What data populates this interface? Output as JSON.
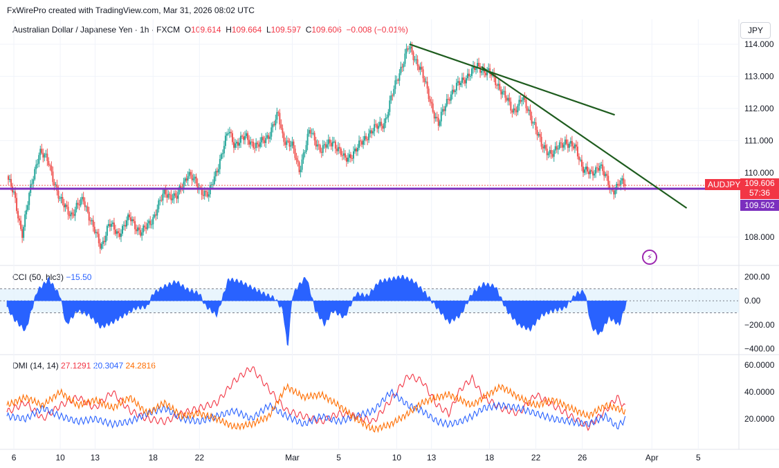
{
  "header": {
    "attribution": "FxWirePro created with TradingView.com, Mar 31, 2026 08:02 UTC"
  },
  "currency_button": "JPY",
  "legend_main": {
    "title": "Australian Dollar / Japanese Yen · 1h · FXCM",
    "o_label": "O",
    "o_value": "109.614",
    "h_label": "H",
    "h_value": "109.664",
    "l_label": "L",
    "l_value": "109.597",
    "c_label": "C",
    "c_value": "109.606",
    "change": "−0.008 (−0.01%)"
  },
  "price_tags": {
    "symbol": "AUDJPY",
    "last_price": "109.606",
    "countdown": "57:36",
    "line_price": "109.502"
  },
  "legend_cci": {
    "label": "CCI (50, hlc3)",
    "value": "−15.50"
  },
  "legend_dmi": {
    "label": "DMI (14, 14)",
    "v1": "27.1291",
    "v2": "20.3047",
    "v3": "24.2816"
  },
  "colors": {
    "up": "#26a69a",
    "down": "#ef5350",
    "trend": "#1e5c1e",
    "hline": "#7b2fbe",
    "cci": "#2962ff",
    "dmi_plus": "#2962ff",
    "dmi_minus": "#f23645",
    "adx": "#ff6d00",
    "tag_red": "#f23645",
    "tag_purple": "#7b2fbe"
  },
  "chart_data": [
    {
      "type": "candlestick",
      "title": "Australian Dollar / Japanese Yen · 1h · FXCM",
      "ylim": [
        107.2,
        114.3
      ],
      "y_ticks": [
        "114.000",
        "113.000",
        "112.000",
        "111.000",
        "110.000",
        "108.000"
      ],
      "y_tick_values": [
        114,
        113,
        112,
        111,
        110,
        108
      ],
      "x_ticks": [
        "6",
        "10",
        "13",
        "18",
        "22",
        "Mar",
        "5",
        "10",
        "13",
        "18",
        "22",
        "26",
        "Apr",
        "5"
      ],
      "x_tick_days": [
        -24,
        -20,
        -17,
        -12,
        -8,
        0,
        4,
        9,
        12,
        17,
        21,
        25,
        31,
        35
      ],
      "x_range_days": [
        -24.6,
        38.5
      ],
      "price_path": [
        [
          -24.6,
          109.9
        ],
        [
          -24,
          109.3
        ],
        [
          -23.3,
          108.1
        ],
        [
          -22.5,
          109.6
        ],
        [
          -21.8,
          110.7
        ],
        [
          -21,
          110.3
        ],
        [
          -20,
          109.1
        ],
        [
          -19,
          108.7
        ],
        [
          -18,
          109.2
        ],
        [
          -17.2,
          108.3
        ],
        [
          -16.5,
          107.7
        ],
        [
          -15.8,
          108.4
        ],
        [
          -15,
          108.1
        ],
        [
          -14,
          108.6
        ],
        [
          -13,
          108.1
        ],
        [
          -12,
          108.6
        ],
        [
          -11,
          109.4
        ],
        [
          -10,
          109.2
        ],
        [
          -9,
          110.0
        ],
        [
          -8,
          109.5
        ],
        [
          -7.2,
          109.3
        ],
        [
          -6.5,
          110.1
        ],
        [
          -5.5,
          111.3
        ],
        [
          -5,
          110.9
        ],
        [
          -4,
          111.1
        ],
        [
          -3,
          110.8
        ],
        [
          -2,
          111.2
        ],
        [
          -1.2,
          111.8
        ],
        [
          -0.8,
          111.1
        ],
        [
          0,
          110.8
        ],
        [
          0.6,
          110.1
        ],
        [
          1.5,
          111.3
        ],
        [
          2.5,
          110.7
        ],
        [
          3.5,
          111.0
        ],
        [
          4.5,
          110.4
        ],
        [
          5.5,
          110.7
        ],
        [
          6.5,
          111.2
        ],
        [
          8,
          111.6
        ],
        [
          9,
          112.9
        ],
        [
          10,
          113.9
        ],
        [
          11,
          113.3
        ],
        [
          12,
          112.1
        ],
        [
          12.6,
          111.5
        ],
        [
          13.5,
          112.4
        ],
        [
          15,
          113.0
        ],
        [
          16,
          113.3
        ],
        [
          17,
          113.1
        ],
        [
          18,
          112.6
        ],
        [
          19,
          111.9
        ],
        [
          19.8,
          112.3
        ],
        [
          20.8,
          111.6
        ],
        [
          21.5,
          110.8
        ],
        [
          22.5,
          110.6
        ],
        [
          23.5,
          111.0
        ],
        [
          24.5,
          110.7
        ],
        [
          25,
          110.2
        ],
        [
          25.8,
          109.9
        ],
        [
          26.5,
          110.3
        ],
        [
          27.5,
          109.4
        ],
        [
          28.2,
          109.7
        ],
        [
          28.8,
          109.6
        ]
      ],
      "trendlines": [
        {
          "from": [
            10.1,
            114.0
          ],
          "to": [
            27.8,
            111.8
          ]
        },
        {
          "from": [
            16.3,
            113.3
          ],
          "to": [
            34.0,
            108.9
          ]
        }
      ],
      "horizontal_line": 109.502,
      "last_price": 109.606
    },
    {
      "type": "area",
      "title": "CCI (50, hlc3)",
      "ylim": [
        -420,
        260
      ],
      "y_ticks": [
        "200.00",
        "0.00",
        "−200.00",
        "−400.00"
      ],
      "y_tick_values": [
        200,
        0,
        -200,
        -400
      ],
      "bands": [
        100,
        -100
      ],
      "value_path": [
        [
          -24.6,
          -50
        ],
        [
          -24,
          -150
        ],
        [
          -23,
          -250
        ],
        [
          -22,
          80
        ],
        [
          -21,
          180
        ],
        [
          -20,
          40
        ],
        [
          -19.5,
          -200
        ],
        [
          -18.5,
          -80
        ],
        [
          -17.5,
          -120
        ],
        [
          -16.5,
          -220
        ],
        [
          -15.5,
          -180
        ],
        [
          -14.5,
          -120
        ],
        [
          -13.5,
          -60
        ],
        [
          -12.5,
          -50
        ],
        [
          -12,
          60
        ],
        [
          -11,
          120
        ],
        [
          -10,
          160
        ],
        [
          -9,
          90
        ],
        [
          -8,
          60
        ],
        [
          -7.5,
          -40
        ],
        [
          -6.5,
          -120
        ],
        [
          -5.5,
          180
        ],
        [
          -4.5,
          160
        ],
        [
          -3.5,
          110
        ],
        [
          -2.5,
          60
        ],
        [
          -1.5,
          20
        ],
        [
          -0.8,
          -80
        ],
        [
          -0.4,
          -400
        ],
        [
          0,
          40
        ],
        [
          0.5,
          120
        ],
        [
          1.2,
          200
        ],
        [
          2.0,
          -80
        ],
        [
          2.8,
          -200
        ],
        [
          3.5,
          -80
        ],
        [
          4.5,
          -140
        ],
        [
          5.5,
          60
        ],
        [
          6.5,
          40
        ],
        [
          7.5,
          160
        ],
        [
          8.5,
          180
        ],
        [
          9.5,
          200
        ],
        [
          10.5,
          160
        ],
        [
          11.5,
          60
        ],
        [
          12.5,
          -60
        ],
        [
          13.5,
          -180
        ],
        [
          14.5,
          -120
        ],
        [
          15.5,
          60
        ],
        [
          16.5,
          140
        ],
        [
          17.5,
          120
        ],
        [
          18.5,
          -80
        ],
        [
          19.5,
          -200
        ],
        [
          20.5,
          -240
        ],
        [
          21.5,
          -120
        ],
        [
          22.5,
          -80
        ],
        [
          23.5,
          -60
        ],
        [
          24.5,
          60
        ],
        [
          25.2,
          80
        ],
        [
          25.8,
          -220
        ],
        [
          26.5,
          -280
        ],
        [
          27.3,
          -140
        ],
        [
          28.2,
          -200
        ],
        [
          28.8,
          -15.5
        ]
      ],
      "last_value": -15.5
    },
    {
      "type": "line",
      "title": "DMI (14, 14)",
      "ylim": [
        0,
        65
      ],
      "y_ticks": [
        "60.0000",
        "40.0000",
        "20.0000"
      ],
      "y_tick_values": [
        60,
        40,
        20
      ],
      "series": [
        {
          "color": "#f23645",
          "values": [
            [
              -24.6,
              25
            ],
            [
              -23,
              32
            ],
            [
              -21.5,
              20
            ],
            [
              -20,
              30
            ],
            [
              -18.5,
              36
            ],
            [
              -17,
              28
            ],
            [
              -15.5,
              40
            ],
            [
              -14,
              26
            ],
            [
              -12.5,
              20
            ],
            [
              -11,
              18
            ],
            [
              -9.5,
              24
            ],
            [
              -8,
              28
            ],
            [
              -6.5,
              32
            ],
            [
              -5,
              48
            ],
            [
              -3.5,
              58
            ],
            [
              -2,
              42
            ],
            [
              -0.5,
              26
            ],
            [
              1,
              22
            ],
            [
              2.5,
              18
            ],
            [
              4,
              24
            ],
            [
              5.5,
              22
            ],
            [
              7,
              18
            ],
            [
              8.5,
              34
            ],
            [
              10,
              52
            ],
            [
              11.2,
              48
            ],
            [
              12.5,
              30
            ],
            [
              13.5,
              24
            ],
            [
              14.5,
              42
            ],
            [
              15.5,
              50
            ],
            [
              16.5,
              36
            ],
            [
              18,
              28
            ],
            [
              19.5,
              24
            ],
            [
              21,
              38
            ],
            [
              22.5,
              30
            ],
            [
              24,
              22
            ],
            [
              25.5,
              14
            ],
            [
              27,
              26
            ],
            [
              28,
              36
            ],
            [
              28.8,
              27.13
            ]
          ]
        },
        {
          "color": "#2962ff",
          "values": [
            [
              -24.6,
              22
            ],
            [
              -23,
              20
            ],
            [
              -21.5,
              28
            ],
            [
              -20,
              22
            ],
            [
              -18.5,
              18
            ],
            [
              -17,
              20
            ],
            [
              -15.5,
              16
            ],
            [
              -14,
              18
            ],
            [
              -12.5,
              24
            ],
            [
              -11,
              28
            ],
            [
              -9.5,
              20
            ],
            [
              -8,
              18
            ],
            [
              -6.5,
              22
            ],
            [
              -5,
              26
            ],
            [
              -3.5,
              20
            ],
            [
              -2,
              30
            ],
            [
              -0.5,
              22
            ],
            [
              1,
              16
            ],
            [
              2.5,
              22
            ],
            [
              4,
              18
            ],
            [
              5.5,
              22
            ],
            [
              7,
              26
            ],
            [
              8.5,
              40
            ],
            [
              10,
              30
            ],
            [
              11.2,
              26
            ],
            [
              12.5,
              18
            ],
            [
              13.5,
              16
            ],
            [
              14.5,
              18
            ],
            [
              15.5,
              22
            ],
            [
              16.5,
              28
            ],
            [
              18,
              30
            ],
            [
              19.5,
              28
            ],
            [
              21,
              24
            ],
            [
              22.5,
              20
            ],
            [
              24,
              18
            ],
            [
              25.5,
              16
            ],
            [
              27,
              22
            ],
            [
              28,
              14
            ],
            [
              28.8,
              20.3
            ]
          ]
        },
        {
          "color": "#ff6d00",
          "values": [
            [
              -24.6,
              30
            ],
            [
              -23,
              36
            ],
            [
              -21.5,
              30
            ],
            [
              -20,
              40
            ],
            [
              -18.5,
              30
            ],
            [
              -17,
              34
            ],
            [
              -15.5,
              28
            ],
            [
              -14,
              36
            ],
            [
              -12.5,
              24
            ],
            [
              -11,
              32
            ],
            [
              -9.5,
              22
            ],
            [
              -8,
              24
            ],
            [
              -6.5,
              20
            ],
            [
              -5,
              14
            ],
            [
              -3.5,
              16
            ],
            [
              -2,
              22
            ],
            [
              -0.5,
              44
            ],
            [
              1,
              36
            ],
            [
              2.5,
              38
            ],
            [
              4,
              30
            ],
            [
              5.5,
              20
            ],
            [
              7,
              12
            ],
            [
              8.5,
              16
            ],
            [
              10,
              24
            ],
            [
              11.2,
              32
            ],
            [
              12.5,
              36
            ],
            [
              13.5,
              38
            ],
            [
              14.5,
              34
            ],
            [
              15.5,
              30
            ],
            [
              16.5,
              36
            ],
            [
              18,
              44
            ],
            [
              19.5,
              36
            ],
            [
              21,
              30
            ],
            [
              22.5,
              34
            ],
            [
              24,
              28
            ],
            [
              25.5,
              22
            ],
            [
              27,
              30
            ],
            [
              28,
              28
            ],
            [
              28.8,
              24.28
            ]
          ]
        }
      ]
    }
  ]
}
